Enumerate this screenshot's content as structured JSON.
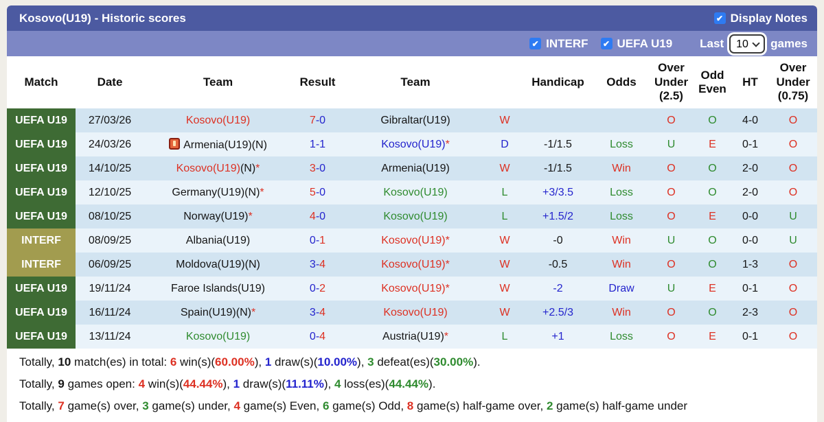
{
  "header": {
    "title": "Kosovo(U19) - Historic scores",
    "display_notes_label": "Display Notes"
  },
  "filter_bar": {
    "interf_label": "INTERF",
    "uefa_label": "UEFA U19",
    "last_label": "Last",
    "games_label": "games",
    "select_value": "10"
  },
  "icons": {
    "check": "✔",
    "star": "*",
    "chevron": "chevron-down",
    "note": "red-note-icon"
  },
  "colors": {
    "title_bar": "#4c5aa1",
    "filter_bar": "#7d87c5",
    "checkbox_blue": "#2e7bf2",
    "badge_uefa_green": "#3e6b34",
    "badge_interf_olive": "#a29c4f",
    "row_odd": "#d2e4f1",
    "row_even": "#eaf3fa",
    "win_red": "#dd3123",
    "draw_blue": "#2424cd",
    "loss_green": "#2f8b2f"
  },
  "table": {
    "columns": [
      "Match",
      "Date",
      "Team",
      "Result",
      "Team",
      "",
      "Handicap",
      "Odds",
      "Over Under (2.5)",
      "Odd Even",
      "HT",
      "Over Under (0.75)"
    ],
    "rows": [
      {
        "badge": "UEFA U19",
        "badge_color": "green",
        "date": "27/03/26",
        "team1": {
          "name": "Kosovo(U19)",
          "color": "red"
        },
        "result": {
          "home": "7",
          "away": "0",
          "winner": "home"
        },
        "team2": {
          "name": "Gibraltar(U19)",
          "color": "black"
        },
        "wdl": {
          "t": "W",
          "c": "red"
        },
        "handicap": {
          "t": "",
          "c": "black"
        },
        "odds": {
          "t": "",
          "c": "black"
        },
        "ou25": {
          "t": "O",
          "c": "red"
        },
        "oe": {
          "t": "O",
          "c": "green"
        },
        "ht": "4-0",
        "ou075": {
          "t": "O",
          "c": "red"
        }
      },
      {
        "badge": "UEFA U19",
        "badge_color": "green",
        "date": "24/03/26",
        "team1": {
          "name": "Armenia(U19)(N)",
          "color": "black",
          "icon": true
        },
        "result": {
          "home": "1",
          "away": "1",
          "winner": "draw"
        },
        "team2": {
          "name": "Kosovo(U19)",
          "color": "blue",
          "star": true
        },
        "wdl": {
          "t": "D",
          "c": "blue"
        },
        "handicap": {
          "t": "-1/1.5",
          "c": "black"
        },
        "odds": {
          "t": "Loss",
          "c": "green"
        },
        "ou25": {
          "t": "U",
          "c": "green"
        },
        "oe": {
          "t": "E",
          "c": "red"
        },
        "ht": "0-1",
        "ou075": {
          "t": "O",
          "c": "red"
        }
      },
      {
        "badge": "UEFA U19",
        "badge_color": "green",
        "date": "14/10/25",
        "team1": {
          "name": "Kosovo(U19)",
          "suffix": "(N)",
          "color": "red",
          "star": true
        },
        "result": {
          "home": "3",
          "away": "0",
          "winner": "home"
        },
        "team2": {
          "name": "Armenia(U19)",
          "color": "black"
        },
        "wdl": {
          "t": "W",
          "c": "red"
        },
        "handicap": {
          "t": "-1/1.5",
          "c": "black"
        },
        "odds": {
          "t": "Win",
          "c": "red"
        },
        "ou25": {
          "t": "O",
          "c": "red"
        },
        "oe": {
          "t": "O",
          "c": "green"
        },
        "ht": "2-0",
        "ou075": {
          "t": "O",
          "c": "red"
        }
      },
      {
        "badge": "UEFA U19",
        "badge_color": "green",
        "date": "12/10/25",
        "team1": {
          "name": "Germany(U19)(N)",
          "color": "black",
          "star": true
        },
        "result": {
          "home": "5",
          "away": "0",
          "winner": "home"
        },
        "team2": {
          "name": "Kosovo(U19)",
          "color": "green"
        },
        "wdl": {
          "t": "L",
          "c": "green"
        },
        "handicap": {
          "t": "+3/3.5",
          "c": "blue"
        },
        "odds": {
          "t": "Loss",
          "c": "green"
        },
        "ou25": {
          "t": "O",
          "c": "red"
        },
        "oe": {
          "t": "O",
          "c": "green"
        },
        "ht": "2-0",
        "ou075": {
          "t": "O",
          "c": "red"
        }
      },
      {
        "badge": "UEFA U19",
        "badge_color": "green",
        "date": "08/10/25",
        "team1": {
          "name": "Norway(U19)",
          "color": "black",
          "star": true
        },
        "result": {
          "home": "4",
          "away": "0",
          "winner": "home"
        },
        "team2": {
          "name": "Kosovo(U19)",
          "color": "green"
        },
        "wdl": {
          "t": "L",
          "c": "green"
        },
        "handicap": {
          "t": "+1.5/2",
          "c": "blue"
        },
        "odds": {
          "t": "Loss",
          "c": "green"
        },
        "ou25": {
          "t": "O",
          "c": "red"
        },
        "oe": {
          "t": "E",
          "c": "red"
        },
        "ht": "0-0",
        "ou075": {
          "t": "U",
          "c": "green"
        }
      },
      {
        "badge": "INTERF",
        "badge_color": "olive",
        "date": "08/09/25",
        "team1": {
          "name": "Albania(U19)",
          "color": "black"
        },
        "result": {
          "home": "0",
          "away": "1",
          "winner": "away"
        },
        "team2": {
          "name": "Kosovo(U19)",
          "color": "red",
          "star": true
        },
        "wdl": {
          "t": "W",
          "c": "red"
        },
        "handicap": {
          "t": "-0",
          "c": "black"
        },
        "odds": {
          "t": "Win",
          "c": "red"
        },
        "ou25": {
          "t": "U",
          "c": "green"
        },
        "oe": {
          "t": "O",
          "c": "green"
        },
        "ht": "0-0",
        "ou075": {
          "t": "U",
          "c": "green"
        }
      },
      {
        "badge": "INTERF",
        "badge_color": "olive",
        "date": "06/09/25",
        "team1": {
          "name": "Moldova(U19)(N)",
          "color": "black"
        },
        "result": {
          "home": "3",
          "away": "4",
          "winner": "away"
        },
        "team2": {
          "name": "Kosovo(U19)",
          "color": "red",
          "star": true
        },
        "wdl": {
          "t": "W",
          "c": "red"
        },
        "handicap": {
          "t": "-0.5",
          "c": "black"
        },
        "odds": {
          "t": "Win",
          "c": "red"
        },
        "ou25": {
          "t": "O",
          "c": "red"
        },
        "oe": {
          "t": "O",
          "c": "green"
        },
        "ht": "1-3",
        "ou075": {
          "t": "O",
          "c": "red"
        }
      },
      {
        "badge": "UEFA U19",
        "badge_color": "green",
        "date": "19/11/24",
        "team1": {
          "name": "Faroe Islands(U19)",
          "color": "black"
        },
        "result": {
          "home": "0",
          "away": "2",
          "winner": "away"
        },
        "team2": {
          "name": "Kosovo(U19)",
          "color": "red",
          "star": true
        },
        "wdl": {
          "t": "W",
          "c": "red"
        },
        "handicap": {
          "t": "-2",
          "c": "blue"
        },
        "odds": {
          "t": "Draw",
          "c": "blue"
        },
        "ou25": {
          "t": "U",
          "c": "green"
        },
        "oe": {
          "t": "E",
          "c": "red"
        },
        "ht": "0-1",
        "ou075": {
          "t": "O",
          "c": "red"
        }
      },
      {
        "badge": "UEFA U19",
        "badge_color": "green",
        "date": "16/11/24",
        "team1": {
          "name": "Spain(U19)(N)",
          "color": "black",
          "star": true
        },
        "result": {
          "home": "3",
          "away": "4",
          "winner": "away"
        },
        "team2": {
          "name": "Kosovo(U19)",
          "color": "red"
        },
        "wdl": {
          "t": "W",
          "c": "red"
        },
        "handicap": {
          "t": "+2.5/3",
          "c": "blue"
        },
        "odds": {
          "t": "Win",
          "c": "red"
        },
        "ou25": {
          "t": "O",
          "c": "red"
        },
        "oe": {
          "t": "O",
          "c": "green"
        },
        "ht": "2-3",
        "ou075": {
          "t": "O",
          "c": "red"
        }
      },
      {
        "badge": "UEFA U19",
        "badge_color": "green",
        "date": "13/11/24",
        "team1": {
          "name": "Kosovo(U19)",
          "color": "green"
        },
        "result": {
          "home": "0",
          "away": "4",
          "winner": "away"
        },
        "team2": {
          "name": "Austria(U19)",
          "color": "black",
          "star": true
        },
        "wdl": {
          "t": "L",
          "c": "green"
        },
        "handicap": {
          "t": "+1",
          "c": "blue"
        },
        "odds": {
          "t": "Loss",
          "c": "green"
        },
        "ou25": {
          "t": "O",
          "c": "red"
        },
        "oe": {
          "t": "E",
          "c": "red"
        },
        "ht": "0-1",
        "ou075": {
          "t": "O",
          "c": "red"
        }
      }
    ]
  },
  "summary": {
    "lines": [
      [
        {
          "t": "Totally, "
        },
        {
          "t": "10",
          "b": true
        },
        {
          "t": " match(es) in total: "
        },
        {
          "t": "6",
          "b": true,
          "c": "red"
        },
        {
          "t": " win(s)("
        },
        {
          "t": "60.00%",
          "b": true,
          "c": "red"
        },
        {
          "t": "), "
        },
        {
          "t": "1",
          "b": true,
          "c": "blue"
        },
        {
          "t": " draw(s)("
        },
        {
          "t": "10.00%",
          "b": true,
          "c": "blue"
        },
        {
          "t": "), "
        },
        {
          "t": "3",
          "b": true,
          "c": "green"
        },
        {
          "t": " defeat(es)("
        },
        {
          "t": "30.00%",
          "b": true,
          "c": "green"
        },
        {
          "t": ")."
        }
      ],
      [
        {
          "t": "Totally, "
        },
        {
          "t": "9",
          "b": true
        },
        {
          "t": " games open: "
        },
        {
          "t": "4",
          "b": true,
          "c": "red"
        },
        {
          "t": " win(s)("
        },
        {
          "t": "44.44%",
          "b": true,
          "c": "red"
        },
        {
          "t": "), "
        },
        {
          "t": "1",
          "b": true,
          "c": "blue"
        },
        {
          "t": " draw(s)("
        },
        {
          "t": "11.11%",
          "b": true,
          "c": "blue"
        },
        {
          "t": "), "
        },
        {
          "t": "4",
          "b": true,
          "c": "green"
        },
        {
          "t": " loss(es)("
        },
        {
          "t": "44.44%",
          "b": true,
          "c": "green"
        },
        {
          "t": ")."
        }
      ],
      [
        {
          "t": "Totally, "
        },
        {
          "t": "7",
          "b": true,
          "c": "red"
        },
        {
          "t": " game(s) over, "
        },
        {
          "t": "3",
          "b": true,
          "c": "green"
        },
        {
          "t": " game(s) under, "
        },
        {
          "t": "4",
          "b": true,
          "c": "red"
        },
        {
          "t": " game(s) Even, "
        },
        {
          "t": "6",
          "b": true,
          "c": "green"
        },
        {
          "t": " game(s) Odd, "
        },
        {
          "t": "8",
          "b": true,
          "c": "red"
        },
        {
          "t": " game(s) half-game over, "
        },
        {
          "t": "2",
          "b": true,
          "c": "green"
        },
        {
          "t": " game(s) half-game under"
        }
      ]
    ]
  }
}
